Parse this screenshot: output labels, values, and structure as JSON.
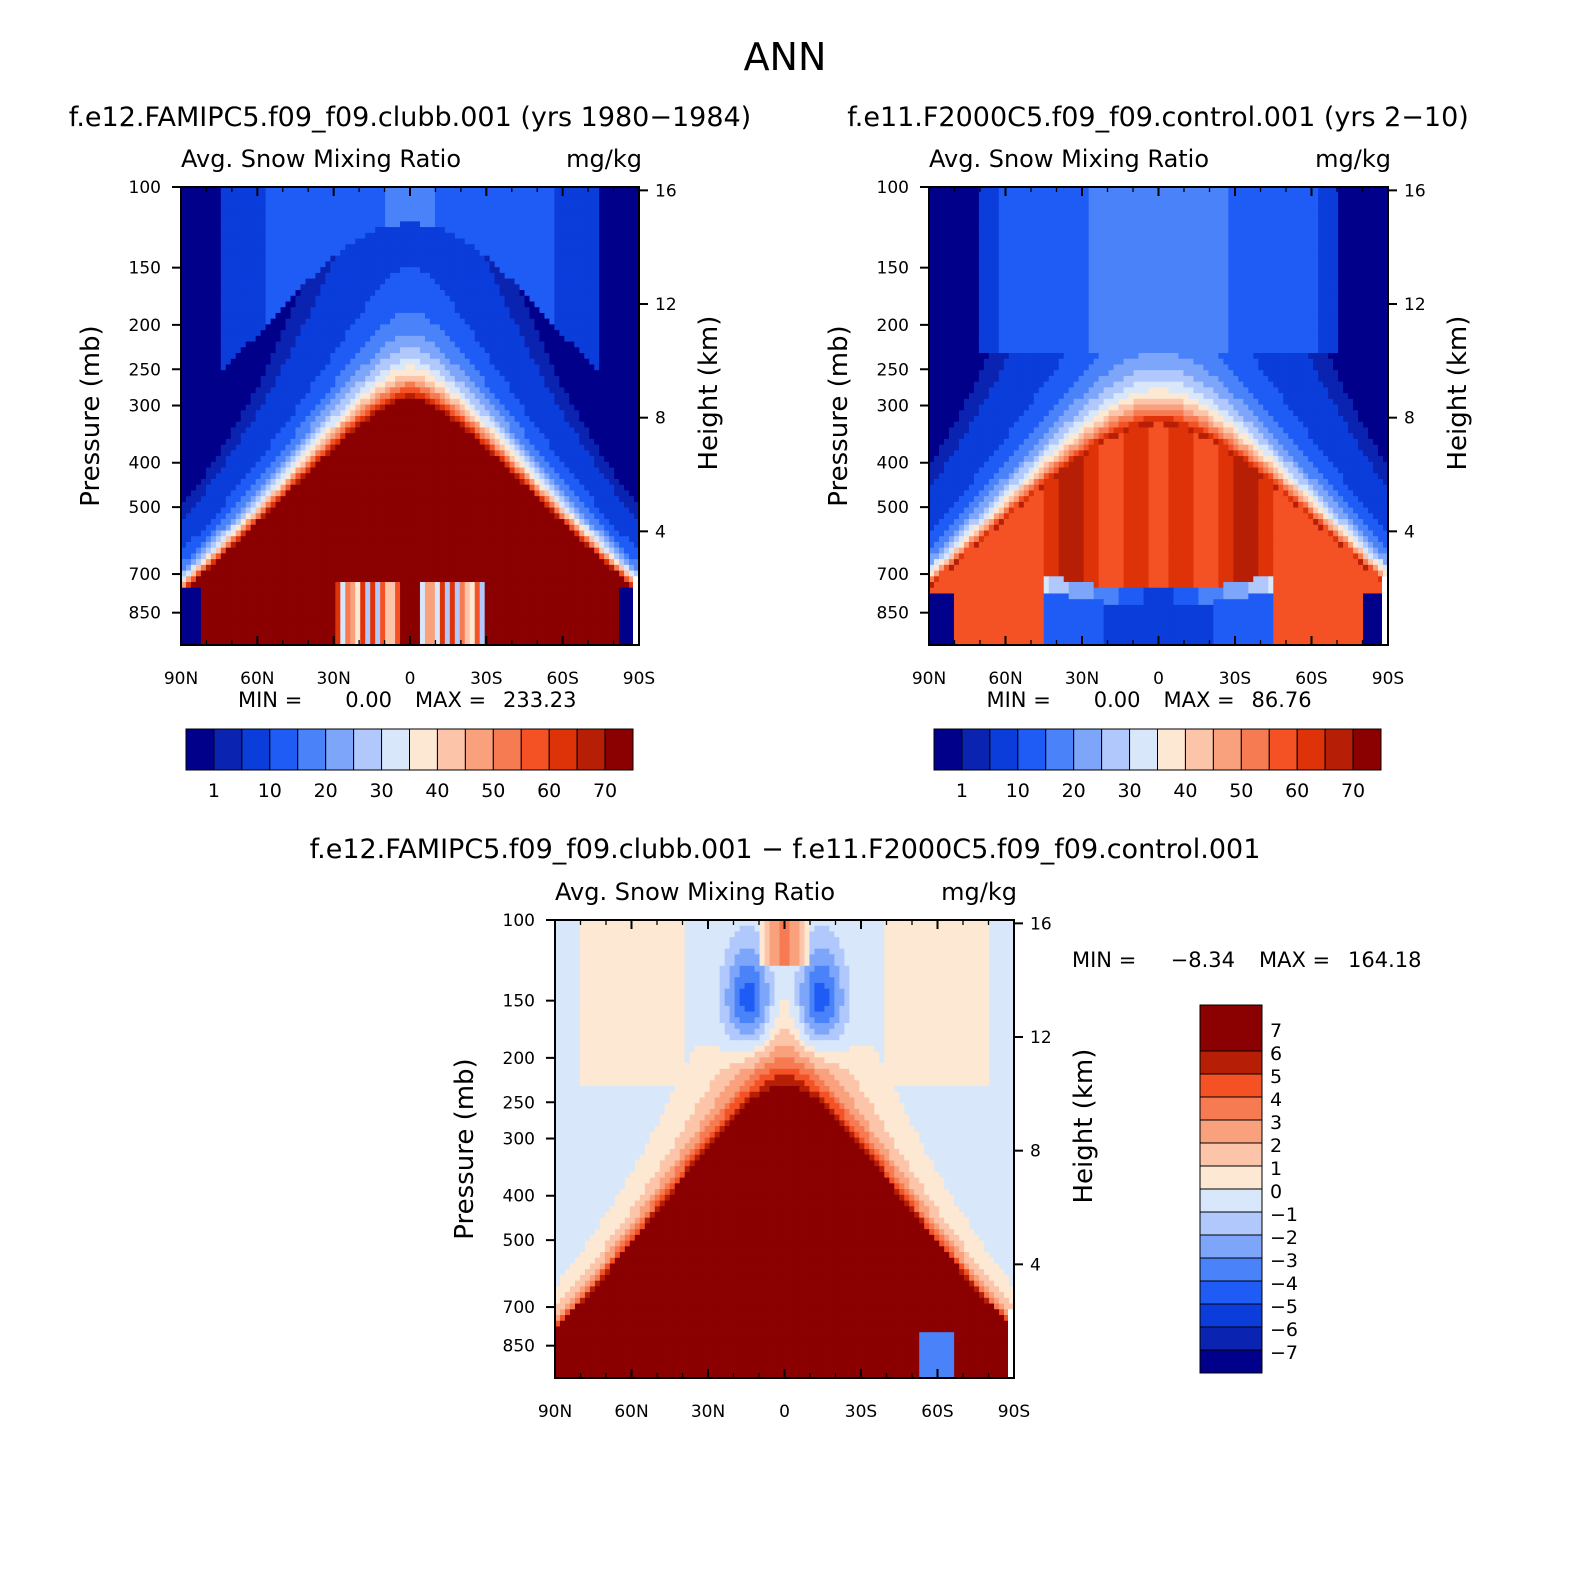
{
  "page_title": "ANN",
  "chart_data": [
    {
      "type": "heatmap",
      "id": "panel-a",
      "case_title": "f.e12.FAMIPC5.f09_f09.clubb.001 (yrs 1980−1984)",
      "variable_label": "Avg. Snow Mixing Ratio",
      "units": "mg/kg",
      "ylabel": "Pressure (mb)",
      "ylabel_right": "Height (km)",
      "xticks": [
        "90N",
        "60N",
        "30N",
        "0",
        "30S",
        "60S",
        "90S"
      ],
      "x_values": [
        90,
        60,
        30,
        0,
        -30,
        -60,
        -90
      ],
      "yticks": [
        "100",
        "150",
        "200",
        "250",
        "300",
        "400",
        "500",
        "700",
        "850"
      ],
      "y_values": [
        100,
        150,
        200,
        250,
        300,
        400,
        500,
        700,
        850
      ],
      "yticks_right": [
        "16",
        "12",
        "8",
        "4"
      ],
      "ylim": [
        100,
        1000
      ],
      "xlim": [
        90,
        -90
      ],
      "min_label": "MIN =",
      "min_value": "0.00",
      "max_label": "MAX =",
      "max_value": "233.23",
      "colorbar_levels": [
        0.5,
        1,
        5,
        10,
        15,
        20,
        25,
        30,
        35,
        40,
        45,
        50,
        55,
        60,
        65,
        70
      ],
      "colorbar_tick_labels": [
        "1",
        "10",
        "20",
        "30",
        "40",
        "50",
        "60",
        "70"
      ],
      "colors": [
        "#00008b",
        "#0a23b0",
        "#0b3ddb",
        "#1f5cf5",
        "#4a82fa",
        "#7da6fb",
        "#b0c8fc",
        "#d8e8fa",
        "#fde8d3",
        "#fcc5a9",
        "#f9a07d",
        "#f67a52",
        "#f45225",
        "#de3208",
        "#b61f06",
        "#8b0000"
      ]
    },
    {
      "type": "heatmap",
      "id": "panel-b",
      "case_title": "f.e11.F2000C5.f09_f09.control.001 (yrs 2−10)",
      "variable_label": "Avg. Snow Mixing Ratio",
      "units": "mg/kg",
      "ylabel": "Pressure (mb)",
      "ylabel_right": "Height (km)",
      "xticks": [
        "90N",
        "60N",
        "30N",
        "0",
        "30S",
        "60S",
        "90S"
      ],
      "x_values": [
        90,
        60,
        30,
        0,
        -30,
        -60,
        -90
      ],
      "yticks": [
        "100",
        "150",
        "200",
        "250",
        "300",
        "400",
        "500",
        "700",
        "850"
      ],
      "y_values": [
        100,
        150,
        200,
        250,
        300,
        400,
        500,
        700,
        850
      ],
      "yticks_right": [
        "16",
        "12",
        "8",
        "4"
      ],
      "ylim": [
        100,
        1000
      ],
      "xlim": [
        90,
        -90
      ],
      "min_label": "MIN =",
      "min_value": "0.00",
      "max_label": "MAX =",
      "max_value": "86.76",
      "colorbar_levels": [
        0.5,
        1,
        5,
        10,
        15,
        20,
        25,
        30,
        35,
        40,
        45,
        50,
        55,
        60,
        65,
        70
      ],
      "colorbar_tick_labels": [
        "1",
        "10",
        "20",
        "30",
        "40",
        "50",
        "60",
        "70"
      ],
      "colors": [
        "#00008b",
        "#0a23b0",
        "#0b3ddb",
        "#1f5cf5",
        "#4a82fa",
        "#7da6fb",
        "#b0c8fc",
        "#d8e8fa",
        "#fde8d3",
        "#fcc5a9",
        "#f9a07d",
        "#f67a52",
        "#f45225",
        "#de3208",
        "#b61f06",
        "#8b0000"
      ]
    },
    {
      "type": "heatmap",
      "id": "panel-diff",
      "case_title": "f.e12.FAMIPC5.f09_f09.clubb.001 − f.e11.F2000C5.f09_f09.control.001",
      "variable_label": "Avg. Snow Mixing Ratio",
      "units": "mg/kg",
      "ylabel": "Pressure (mb)",
      "ylabel_right": "Height (km)",
      "xticks": [
        "90N",
        "60N",
        "30N",
        "0",
        "30S",
        "60S",
        "90S"
      ],
      "x_values": [
        90,
        60,
        30,
        0,
        -30,
        -60,
        -90
      ],
      "yticks": [
        "100",
        "150",
        "200",
        "250",
        "300",
        "400",
        "500",
        "700",
        "850"
      ],
      "y_values": [
        100,
        150,
        200,
        250,
        300,
        400,
        500,
        700,
        850
      ],
      "yticks_right": [
        "16",
        "12",
        "8",
        "4"
      ],
      "ylim": [
        100,
        1000
      ],
      "xlim": [
        90,
        -90
      ],
      "min_label": "MIN =",
      "min_value": "−8.34",
      "max_label": "MAX =",
      "max_value": "164.18",
      "colorbar_levels": [
        -7,
        -6,
        -5,
        -4,
        -3,
        -2,
        -1,
        0,
        1,
        2,
        3,
        4,
        5,
        6,
        7
      ],
      "colorbar_tick_labels": [
        "7",
        "6",
        "5",
        "4",
        "3",
        "2",
        "1",
        "0",
        "−1",
        "−2",
        "−3",
        "−4",
        "−5",
        "−6",
        "−7"
      ],
      "colors": [
        "#00008b",
        "#0a23b0",
        "#0b3ddb",
        "#1f5cf5",
        "#4a82fa",
        "#7da6fb",
        "#b0c8fc",
        "#d8e8fa",
        "#fde8d3",
        "#fcc5a9",
        "#f9a07d",
        "#f67a52",
        "#f45225",
        "#b61f06",
        "#8b0000"
      ]
    }
  ]
}
